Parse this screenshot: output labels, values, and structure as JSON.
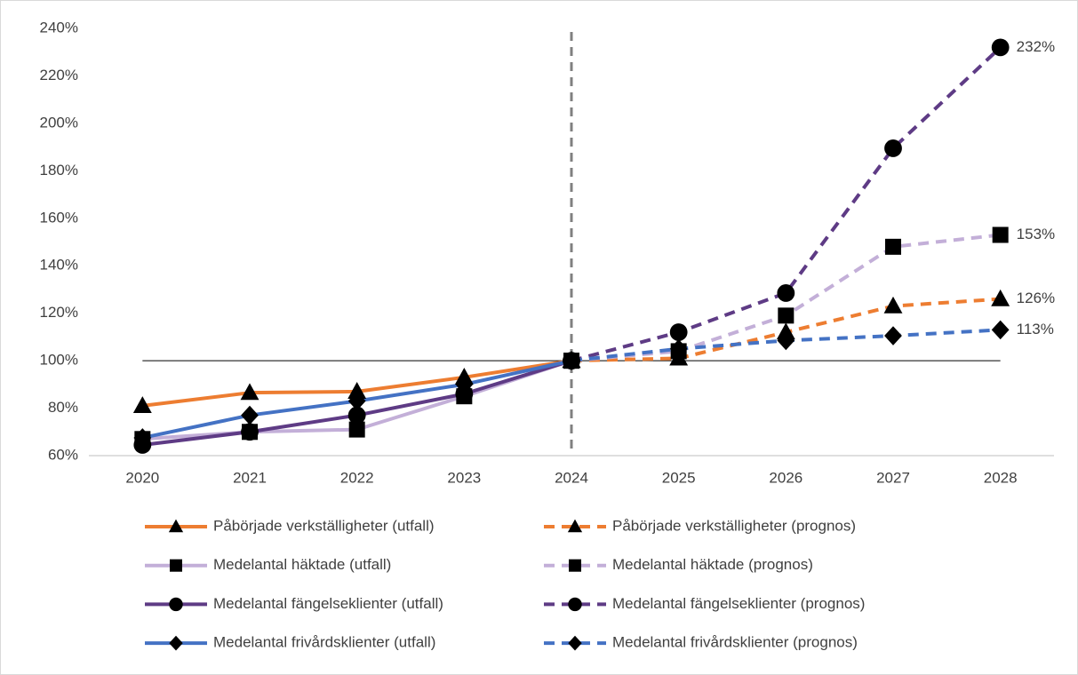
{
  "chart_data": {
    "type": "line",
    "categories": [
      "2020",
      "2021",
      "2022",
      "2023",
      "2024",
      "2025",
      "2026",
      "2027",
      "2028"
    ],
    "ylim": [
      60,
      240
    ],
    "yticks": [
      {
        "value": 60,
        "label": "60%"
      },
      {
        "value": 80,
        "label": "80%"
      },
      {
        "value": 100,
        "label": "100%"
      },
      {
        "value": 120,
        "label": "120%"
      },
      {
        "value": 140,
        "label": "140%"
      },
      {
        "value": 160,
        "label": "160%"
      },
      {
        "value": 180,
        "label": "180%"
      },
      {
        "value": 200,
        "label": "200%"
      },
      {
        "value": 220,
        "label": "220%"
      },
      {
        "value": 240,
        "label": "240%"
      }
    ],
    "grid": false,
    "hline": 100,
    "vline": "2024",
    "legend": "bottom",
    "series": [
      {
        "name": "Påbörjade verkställigheter (utfall)",
        "color": "#ed7d31",
        "marker": "triangle",
        "dash": false,
        "values": [
          81,
          86.5,
          87,
          93,
          100,
          null,
          null,
          null,
          null
        ]
      },
      {
        "name": "Påbörjade verkställigheter (prognos)",
        "color": "#ed7d31",
        "marker": "triangle",
        "dash": true,
        "values": [
          null,
          null,
          null,
          null,
          100,
          101,
          112,
          123,
          126
        ],
        "value_labels": [
          null,
          null,
          null,
          null,
          null,
          null,
          null,
          null,
          "126%"
        ]
      },
      {
        "name": "Medelantal häktade (utfall)",
        "color": "#c3afd8",
        "marker": "square",
        "dash": false,
        "values": [
          67,
          70,
          71,
          85,
          100,
          null,
          null,
          null,
          null
        ]
      },
      {
        "name": "Medelantal häktade (prognos)",
        "color": "#c3afd8",
        "marker": "square",
        "dash": true,
        "values": [
          null,
          null,
          null,
          null,
          100,
          104,
          119,
          148,
          153
        ],
        "value_labels": [
          null,
          null,
          null,
          null,
          null,
          null,
          null,
          null,
          "153%"
        ]
      },
      {
        "name": "Medelantal fängelseklienter (utfall)",
        "color": "#5e3b85",
        "marker": "circle",
        "dash": false,
        "values": [
          64.5,
          70,
          77,
          86,
          100,
          null,
          null,
          null,
          null
        ]
      },
      {
        "name": "Medelantal fängelseklienter (prognos)",
        "color": "#5e3b85",
        "marker": "circle",
        "dash": true,
        "values": [
          null,
          null,
          null,
          null,
          100,
          112,
          128.5,
          189.5,
          232
        ],
        "value_labels": [
          null,
          null,
          null,
          null,
          null,
          null,
          null,
          null,
          "232%"
        ]
      },
      {
        "name": "Medelantal frivårdsklienter (utfall)",
        "color": "#4472c4",
        "marker": "diamond",
        "dash": false,
        "values": [
          67.5,
          77,
          83,
          90,
          100,
          null,
          null,
          null,
          null
        ]
      },
      {
        "name": "Medelantal frivårdsklienter (prognos)",
        "color": "#4472c4",
        "marker": "diamond",
        "dash": true,
        "values": [
          null,
          null,
          null,
          null,
          100,
          105,
          108.5,
          110.5,
          113
        ],
        "value_labels": [
          null,
          null,
          null,
          null,
          null,
          null,
          null,
          null,
          "113%"
        ]
      }
    ]
  }
}
